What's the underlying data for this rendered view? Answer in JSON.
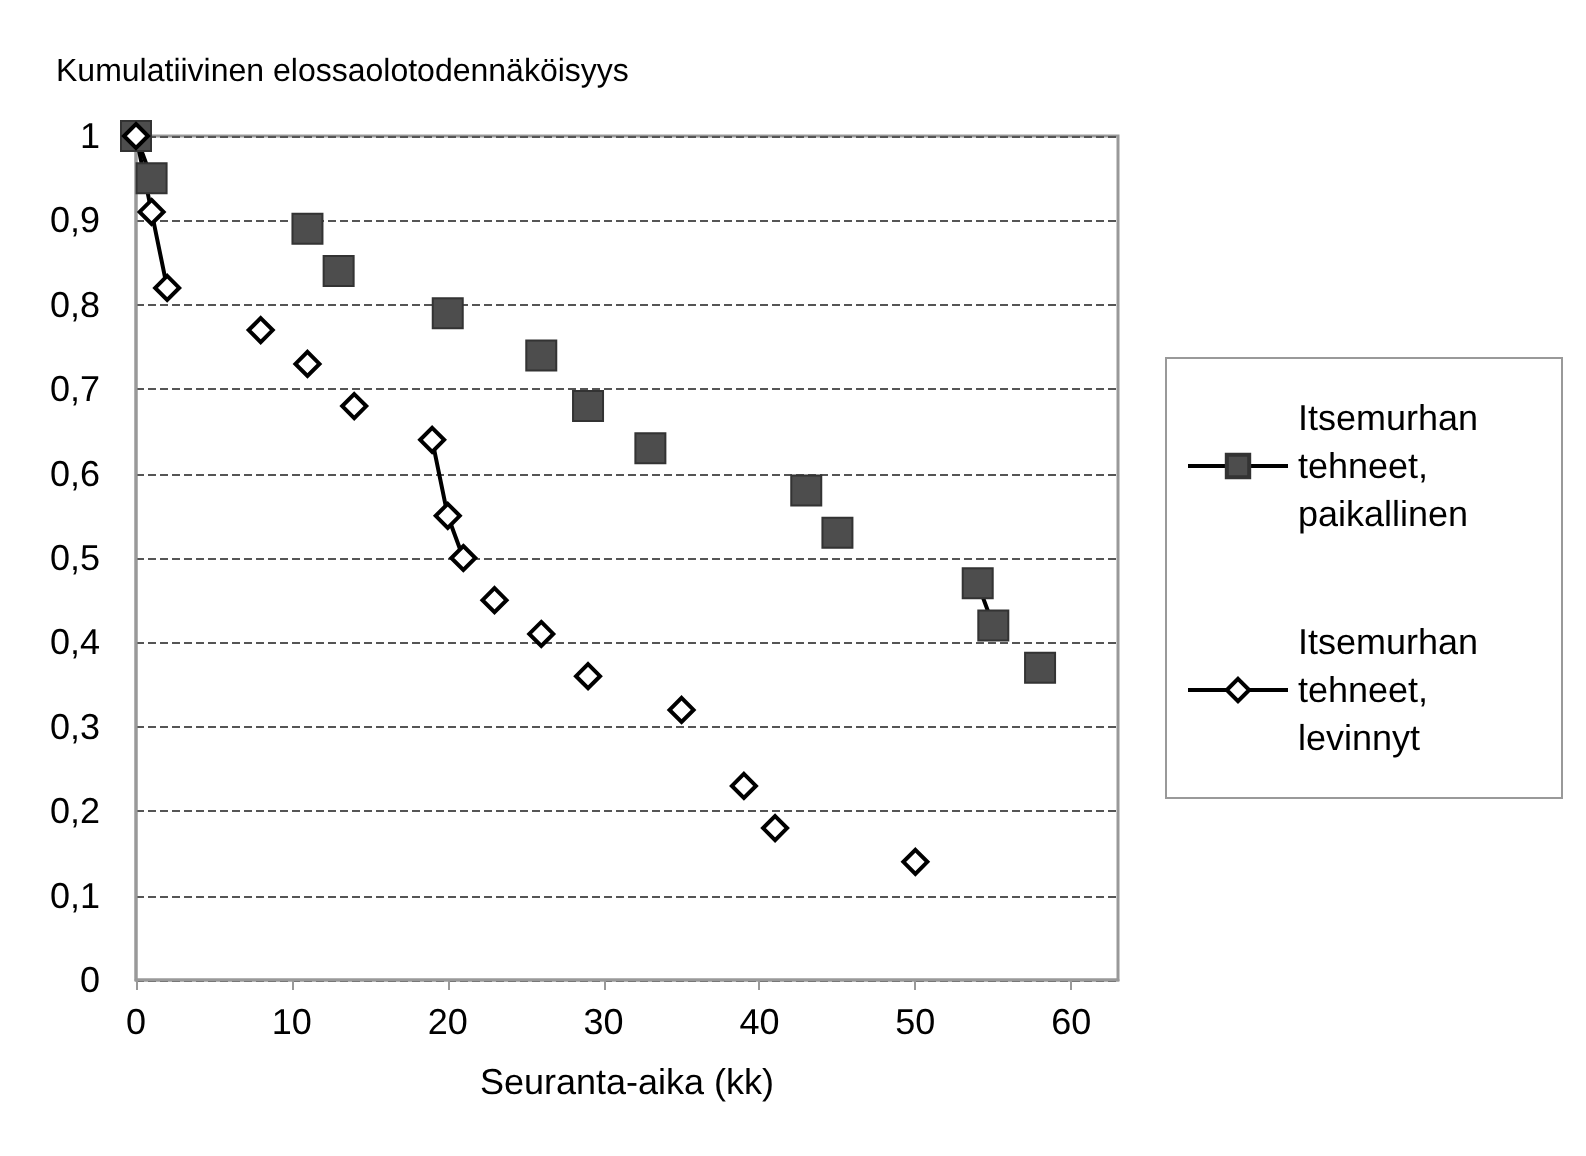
{
  "chart_data": {
    "type": "line",
    "ylabel": "Kumulatiivinen elossaolotodennäköisyys",
    "xlabel": "Seuranta-aika (kk)",
    "xlim": [
      0,
      63
    ],
    "xticks": [
      0,
      10,
      20,
      30,
      40,
      50,
      60
    ],
    "ylim": [
      0,
      1
    ],
    "yticks": [
      0,
      {
        "value": 0.1,
        "label": "0,1"
      },
      {
        "value": 0.2,
        "label": "0,2"
      },
      {
        "value": 0.3,
        "label": "0,3"
      },
      {
        "value": 0.4,
        "label": "0,4"
      },
      {
        "value": 0.5,
        "label": "0,5"
      },
      {
        "value": 0.6,
        "label": "0,6"
      },
      {
        "value": 0.7,
        "label": "0,7"
      },
      {
        "value": 0.8,
        "label": "0,8"
      },
      {
        "value": 0.9,
        "label": "0,9"
      },
      1
    ],
    "grid": "y",
    "legend": "right",
    "line_style": "solid",
    "series": [
      {
        "name": "Itsemurhan tehneet, paikallinen",
        "color": "#4d4d4d",
        "marker": "square",
        "x": [
          0,
          1,
          null,
          11,
          null,
          13,
          null,
          20,
          null,
          26,
          null,
          29,
          null,
          33,
          null,
          43,
          null,
          45,
          null,
          54,
          55,
          null,
          58
        ],
        "values": [
          1,
          0.95,
          null,
          0.89,
          null,
          0.84,
          null,
          0.79,
          null,
          0.74,
          null,
          0.68,
          null,
          0.63,
          null,
          0.58,
          null,
          0.53,
          null,
          0.47,
          0.42,
          null,
          0.37
        ]
      },
      {
        "name": "Itsemurhan tehneet, levinnyt",
        "color": "#000000",
        "marker": "diamond",
        "x": [
          0,
          1,
          2,
          null,
          8,
          null,
          11,
          null,
          14,
          null,
          19,
          20,
          21,
          null,
          23,
          null,
          26,
          null,
          29,
          null,
          35,
          null,
          39,
          null,
          41,
          null,
          50
        ],
        "values": [
          1,
          0.91,
          0.82,
          null,
          0.77,
          null,
          0.73,
          null,
          0.68,
          null,
          0.64,
          0.55,
          0.5,
          null,
          0.45,
          null,
          0.41,
          null,
          0.36,
          null,
          0.32,
          null,
          0.23,
          null,
          0.18,
          null,
          0.14
        ]
      }
    ]
  }
}
